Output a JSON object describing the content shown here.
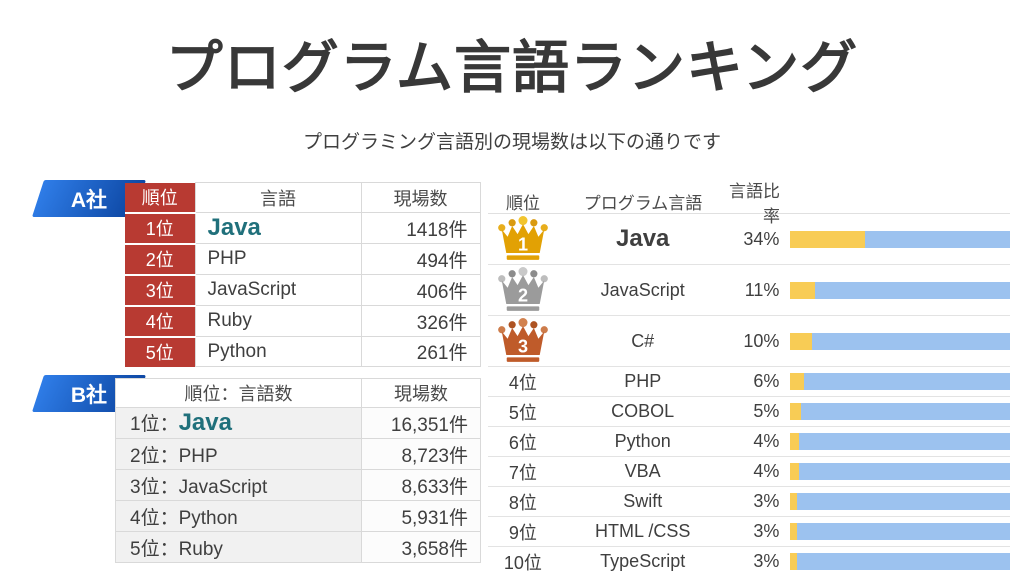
{
  "title": "プログラム言語ランキング",
  "subtitle": "プログラミング言語別の現場数は以下の通りです",
  "colors": {
    "accent_red": "#B83A32",
    "tag_blue_light": "#2F7DE8",
    "tag_blue_dark": "#0C45A0",
    "highlight_teal": "#20707B",
    "bar_yellow": "#F8CC55",
    "bar_blue": "#9CC2EF",
    "crown_gold": "#E2A104",
    "crown_silver": "#9B9B9B",
    "crown_bronze": "#BF5B2A"
  },
  "company_a": {
    "tag": "A社",
    "headers": {
      "rank": "順位",
      "language": "言語",
      "count": "現場数"
    },
    "rows": [
      {
        "rank": "1位",
        "language": "Java",
        "count": "1418件",
        "highlight": true
      },
      {
        "rank": "2位",
        "language": "PHP",
        "count": "494件"
      },
      {
        "rank": "3位",
        "language": "JavaScript",
        "count": "406件"
      },
      {
        "rank": "4位",
        "language": "Ruby",
        "count": "326件"
      },
      {
        "rank": "5位",
        "language": "Python",
        "count": "261件"
      }
    ]
  },
  "company_b": {
    "tag": "B社",
    "headers": {
      "rank_language": "順位：言語数",
      "count": "現場数"
    },
    "rows": [
      {
        "rank": "1位：",
        "language": "Java",
        "count": "16,351件",
        "highlight": true
      },
      {
        "rank": "2位：",
        "language": "PHP",
        "count": "8,723件"
      },
      {
        "rank": "3位：",
        "language": "JavaScript",
        "count": "8,633件"
      },
      {
        "rank": "4位：",
        "language": "Python",
        "count": "5,931件"
      },
      {
        "rank": "5位：",
        "language": "Ruby",
        "count": "3,658件"
      }
    ]
  },
  "ranking": {
    "headers": {
      "rank": "順位",
      "language": "プログラム言語",
      "ratio": "言語比率"
    },
    "rows": [
      {
        "rank": "1",
        "crown": "gold",
        "language": "Java",
        "percent": 34,
        "percent_label": "34%",
        "highlight": true
      },
      {
        "rank": "2",
        "crown": "silver",
        "language": "JavaScript",
        "percent": 11,
        "percent_label": "11%"
      },
      {
        "rank": "3",
        "crown": "bronze",
        "language": "C#",
        "percent": 10,
        "percent_label": "10%"
      },
      {
        "rank": "4位",
        "language": "PHP",
        "percent": 6,
        "percent_label": "6%"
      },
      {
        "rank": "5位",
        "language": "COBOL",
        "percent": 5,
        "percent_label": "5%"
      },
      {
        "rank": "6位",
        "language": "Python",
        "percent": 4,
        "percent_label": "4%"
      },
      {
        "rank": "7位",
        "language": "VBA",
        "percent": 4,
        "percent_label": "4%"
      },
      {
        "rank": "8位",
        "language": "Swift",
        "percent": 3,
        "percent_label": "3%"
      },
      {
        "rank": "9位",
        "language": "HTML /CSS",
        "percent": 3,
        "percent_label": "3%"
      },
      {
        "rank": "10位",
        "language": "TypeScript",
        "percent": 3,
        "percent_label": "3%"
      }
    ]
  },
  "chart_data": [
    {
      "type": "table",
      "title": "A社 言語別現場数",
      "columns": [
        "順位",
        "言語",
        "現場数"
      ],
      "rows": [
        [
          "1位",
          "Java",
          "1418件"
        ],
        [
          "2位",
          "PHP",
          "494件"
        ],
        [
          "3位",
          "JavaScript",
          "406件"
        ],
        [
          "4位",
          "Ruby",
          "326件"
        ],
        [
          "5位",
          "Python",
          "261件"
        ]
      ]
    },
    {
      "type": "table",
      "title": "B社 言語別現場数",
      "columns": [
        "順位：言語数",
        "現場数"
      ],
      "rows": [
        [
          "1位：Java",
          "16,351件"
        ],
        [
          "2位：PHP",
          "8,723件"
        ],
        [
          "3位：JavaScript",
          "8,633件"
        ],
        [
          "4位：Python",
          "5,931件"
        ],
        [
          "5位：Ruby",
          "3,658件"
        ]
      ]
    },
    {
      "type": "bar",
      "orientation": "horizontal",
      "title": "プログラム言語 言語比率",
      "categories": [
        "Java",
        "JavaScript",
        "C#",
        "PHP",
        "COBOL",
        "Python",
        "VBA",
        "Swift",
        "HTML /CSS",
        "TypeScript"
      ],
      "values": [
        34,
        11,
        10,
        6,
        5,
        4,
        4,
        3,
        3,
        3
      ],
      "unit": "%",
      "value_range": [
        0,
        100
      ],
      "xlabel": "言語比率",
      "ylabel": "順位",
      "legend": "none",
      "bar_colors": {
        "value": "#F8CC55",
        "remainder": "#9CC2EF"
      }
    }
  ]
}
